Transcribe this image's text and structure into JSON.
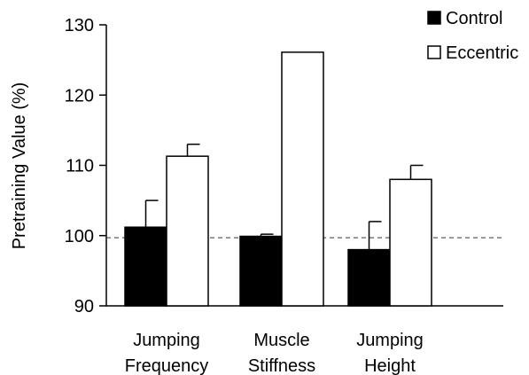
{
  "chart_data": {
    "type": "bar",
    "categories": [
      [
        "Jumping",
        "Frequency"
      ],
      [
        "Muscle",
        "Stiffness"
      ],
      [
        "Jumping",
        "Height"
      ]
    ],
    "series": [
      {
        "name": "Control",
        "values": [
          101.2,
          99.9,
          98.0
        ],
        "errors": [
          3.8,
          0.3,
          4.0
        ],
        "fill": "#000000"
      },
      {
        "name": "Eccentric",
        "values": [
          111.3,
          126.1,
          108.0
        ],
        "errors": [
          1.7,
          0.0,
          2.0
        ],
        "fill": "#ffffff"
      }
    ],
    "ylabel": "Pretraining Value (%)",
    "ylim": [
      90,
      130
    ],
    "yticks": [
      "90",
      "100",
      "110",
      "120",
      "130"
    ],
    "reference_line": 99.7,
    "legend_position": "top-right",
    "grid": false
  }
}
